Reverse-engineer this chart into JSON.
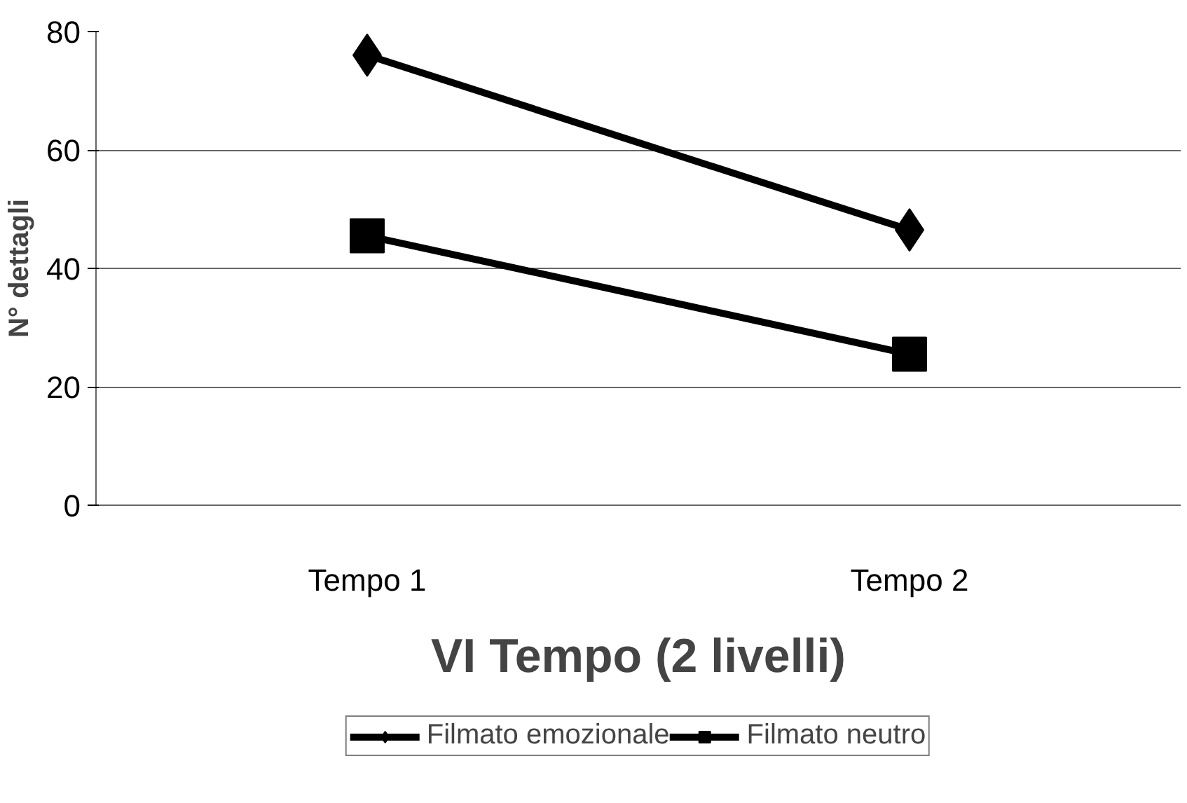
{
  "chart_data": {
    "type": "line",
    "xlabel": "VI Tempo (2 livelli)",
    "ylabel": "N° dettagli",
    "categories": [
      "Tempo 1",
      "Tempo 2"
    ],
    "series": [
      {
        "name": "Filmato emozionale",
        "color": "#000000",
        "marker": "diamond",
        "values": [
          76,
          46.5
        ]
      },
      {
        "name": "Filmato neutro",
        "color": "#000000",
        "marker": "square",
        "values": [
          45.5,
          25.5
        ]
      }
    ],
    "ylim": [
      0,
      80
    ],
    "yticks": [
      0,
      20,
      40,
      60,
      80
    ],
    "grid": "y",
    "legend": "bottom",
    "line_style": "solid"
  }
}
